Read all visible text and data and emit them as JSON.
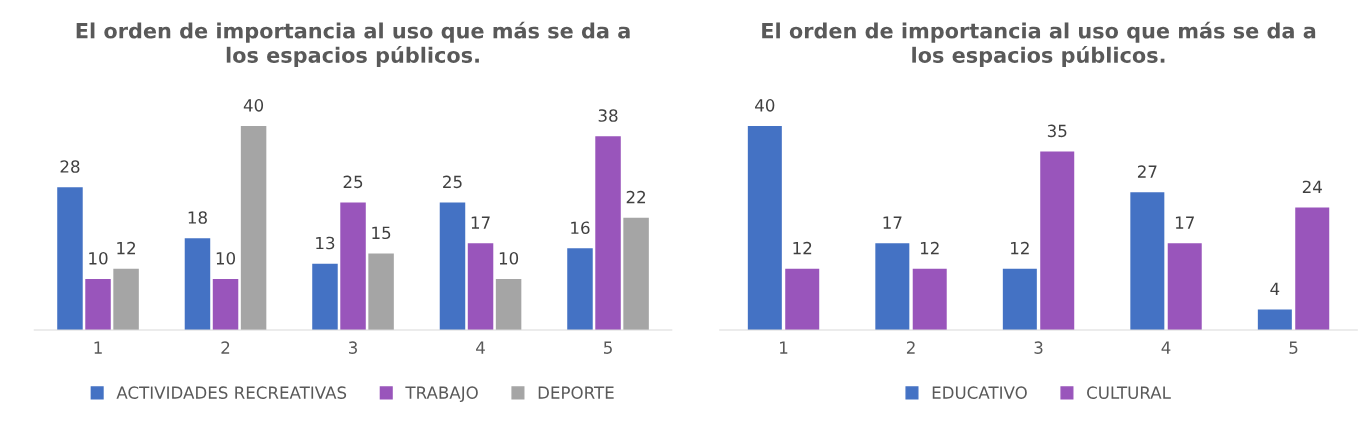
{
  "chart_data": [
    {
      "type": "bar",
      "title": "El orden de importancia al uso que más se da a\nlos espacios públicos.",
      "categories": [
        "1",
        "2",
        "3",
        "4",
        "5"
      ],
      "series": [
        {
          "name": "ACTIVIDADES RECREATIVAS",
          "color": "#4472c4",
          "values": [
            28,
            18,
            13,
            25,
            16
          ]
        },
        {
          "name": "TRABAJO",
          "color": "#9955bb",
          "values": [
            10,
            10,
            25,
            17,
            38
          ]
        },
        {
          "name": "DEPORTE",
          "color": "#a5a5a5",
          "values": [
            12,
            40,
            15,
            10,
            22
          ]
        }
      ],
      "data_labels": true,
      "legend": "bottom"
    },
    {
      "type": "bar",
      "title": "El orden de importancia al uso que más se da a\nlos espacios públicos.",
      "categories": [
        "1",
        "2",
        "3",
        "4",
        "5"
      ],
      "series": [
        {
          "name": "EDUCATIVO",
          "color": "#4472c4",
          "values": [
            40,
            17,
            12,
            27,
            4
          ]
        },
        {
          "name": "CULTURAL",
          "color": "#9955bb",
          "values": [
            12,
            12,
            35,
            17,
            24
          ]
        }
      ],
      "data_labels": true,
      "legend": "bottom"
    }
  ]
}
